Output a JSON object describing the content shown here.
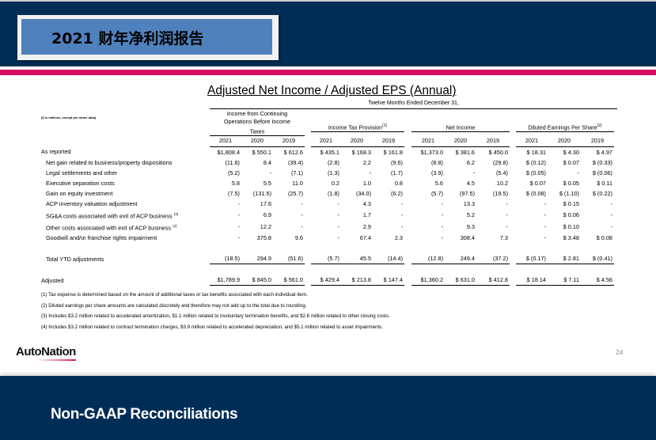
{
  "header": {
    "title": "2021 财年净利润报告"
  },
  "slide": {
    "title": "Adjusted Net Income / Adjusted EPS (Annual)",
    "units_note": "($ in millions, except per share data)",
    "period_header": "Twelve Months Ended December 31,",
    "groups": [
      {
        "label": "Income from Continuing Operations Before Income Taxes",
        "sup": ""
      },
      {
        "label": "Income Tax Provision",
        "sup": "(1)"
      },
      {
        "label": "Net Income",
        "sup": ""
      },
      {
        "label": "Diluted Earnings Per Share",
        "sup": "(2)"
      }
    ],
    "years": [
      "2021",
      "2020",
      "2019",
      "2021",
      "2020",
      "2019",
      "2021",
      "2020",
      "2019",
      "2021",
      "2020",
      "2019"
    ],
    "rows": [
      {
        "label": "As reported",
        "sup": "",
        "values": [
          "$1,808.4",
          "$ 550.1",
          "$ 612.6",
          "$ 435.1",
          "$ 168.3",
          "$ 161.8",
          "$1,373.0",
          "$ 381.6",
          "$ 450.0",
          "$ 18.31",
          "$ 4.30",
          "$ 4.97"
        ]
      },
      {
        "label": "Net gain related to business/property dispositions",
        "sup": "",
        "values": [
          "(11.6)",
          "8.4",
          "(39.4)",
          "(2.8)",
          "2.2",
          "(9.6)",
          "(8.8)",
          "6.2",
          "(29.8)",
          "$ (0.12)",
          "$ 0.07",
          "$ (0.33)"
        ]
      },
      {
        "label": "Legal settlements and other",
        "sup": "",
        "values": [
          "(5.2)",
          "-",
          "(7.1)",
          "(1.3)",
          "-",
          "(1.7)",
          "(3.9)",
          "-",
          "(5.4)",
          "$ (0.05)",
          "-",
          "$ (0.06)"
        ]
      },
      {
        "label": "Executive separation costs",
        "sup": "",
        "values": [
          "5.8",
          "5.5",
          "11.0",
          "0.2",
          "1.0",
          "0.8",
          "5.6",
          "4.5",
          "10.2",
          "$ 0.07",
          "$ 0.05",
          "$ 0.11"
        ]
      },
      {
        "label": "Gain on equity investment",
        "sup": "",
        "values": [
          "(7.5)",
          "(131.5)",
          "(25.7)",
          "(1.8)",
          "(34.0)",
          "(6.2)",
          "(5.7)",
          "(97.5)",
          "(19.5)",
          "$ (0.08)",
          "$ (1.10)",
          "$ (0.22)"
        ]
      },
      {
        "label": "ACP inventory valuation adjustment",
        "sup": "",
        "values": [
          "-",
          "17.6",
          "-",
          "-",
          "4.3",
          "-",
          "-",
          "13.3",
          "-",
          "-",
          "$ 0.15",
          "-"
        ]
      },
      {
        "label": "SG&A costs associated with exit of ACP business",
        "sup": "(3)",
        "values": [
          "-",
          "6.9",
          "-",
          "-",
          "1.7",
          "-",
          "-",
          "5.2",
          "-",
          "-",
          "$ 0.06",
          "-"
        ]
      },
      {
        "label": "Other costs associated with exit of ACP business",
        "sup": "(4)",
        "values": [
          "-",
          "12.2",
          "-",
          "-",
          "2.9",
          "-",
          "-",
          "9.3",
          "-",
          "-",
          "$ 0.10",
          "-"
        ]
      },
      {
        "label": "Goodwill and/or franchise rights impairment",
        "sup": "",
        "values": [
          "-",
          "375.8",
          "9.6",
          "-",
          "67.4",
          "2.3",
          "-",
          "308.4",
          "7.3",
          "-",
          "$ 3.48",
          "$ 0.08"
        ]
      }
    ],
    "total": {
      "label": "Total YTD adjustments",
      "values": [
        "(18.5)",
        "294.9",
        "(51.6)",
        "(5.7)",
        "45.5",
        "(14.4)",
        "(12.8)",
        "249.4",
        "(37.2)",
        "$ (0.17)",
        "$ 2.81",
        "$ (0.41)"
      ]
    },
    "adjusted": {
      "label": "Adjusted",
      "values": [
        "$1,789.9",
        "$ 845.0",
        "$ 561.0",
        "$ 429.4",
        "$ 213.8",
        "$ 147.4",
        "$1,360.2",
        "$ 631.0",
        "$ 412.8",
        "$ 18.14",
        "$ 7.11",
        "$ 4.56"
      ]
    },
    "footnotes": [
      "(1) Tax expense is determined based on the amount of additional taxes or tax benefits associated with each individual item.",
      "(2) Diluted earnings per share amounts are calculated discretely and therefore may not add up to the total due to rounding.",
      "(3) Includes $3.2 million related to accelerated amortization, $1.1 million related to involuntary termination benefits, and $2.6 million related to other closing costs.",
      "(4) Includes $3.2 million related to contract termination charges, $3.9 million related to accelerated depreciation, and $5.1 million related to asset impairments."
    ]
  },
  "footer": {
    "logo": "AutoNation",
    "page_number": "24"
  },
  "section": {
    "title": "Non-GAAP Reconciliations"
  },
  "colors": {
    "navy": "#002d55",
    "accent_pink": "#d40f61",
    "title_box_blue": "#4f81bd"
  }
}
